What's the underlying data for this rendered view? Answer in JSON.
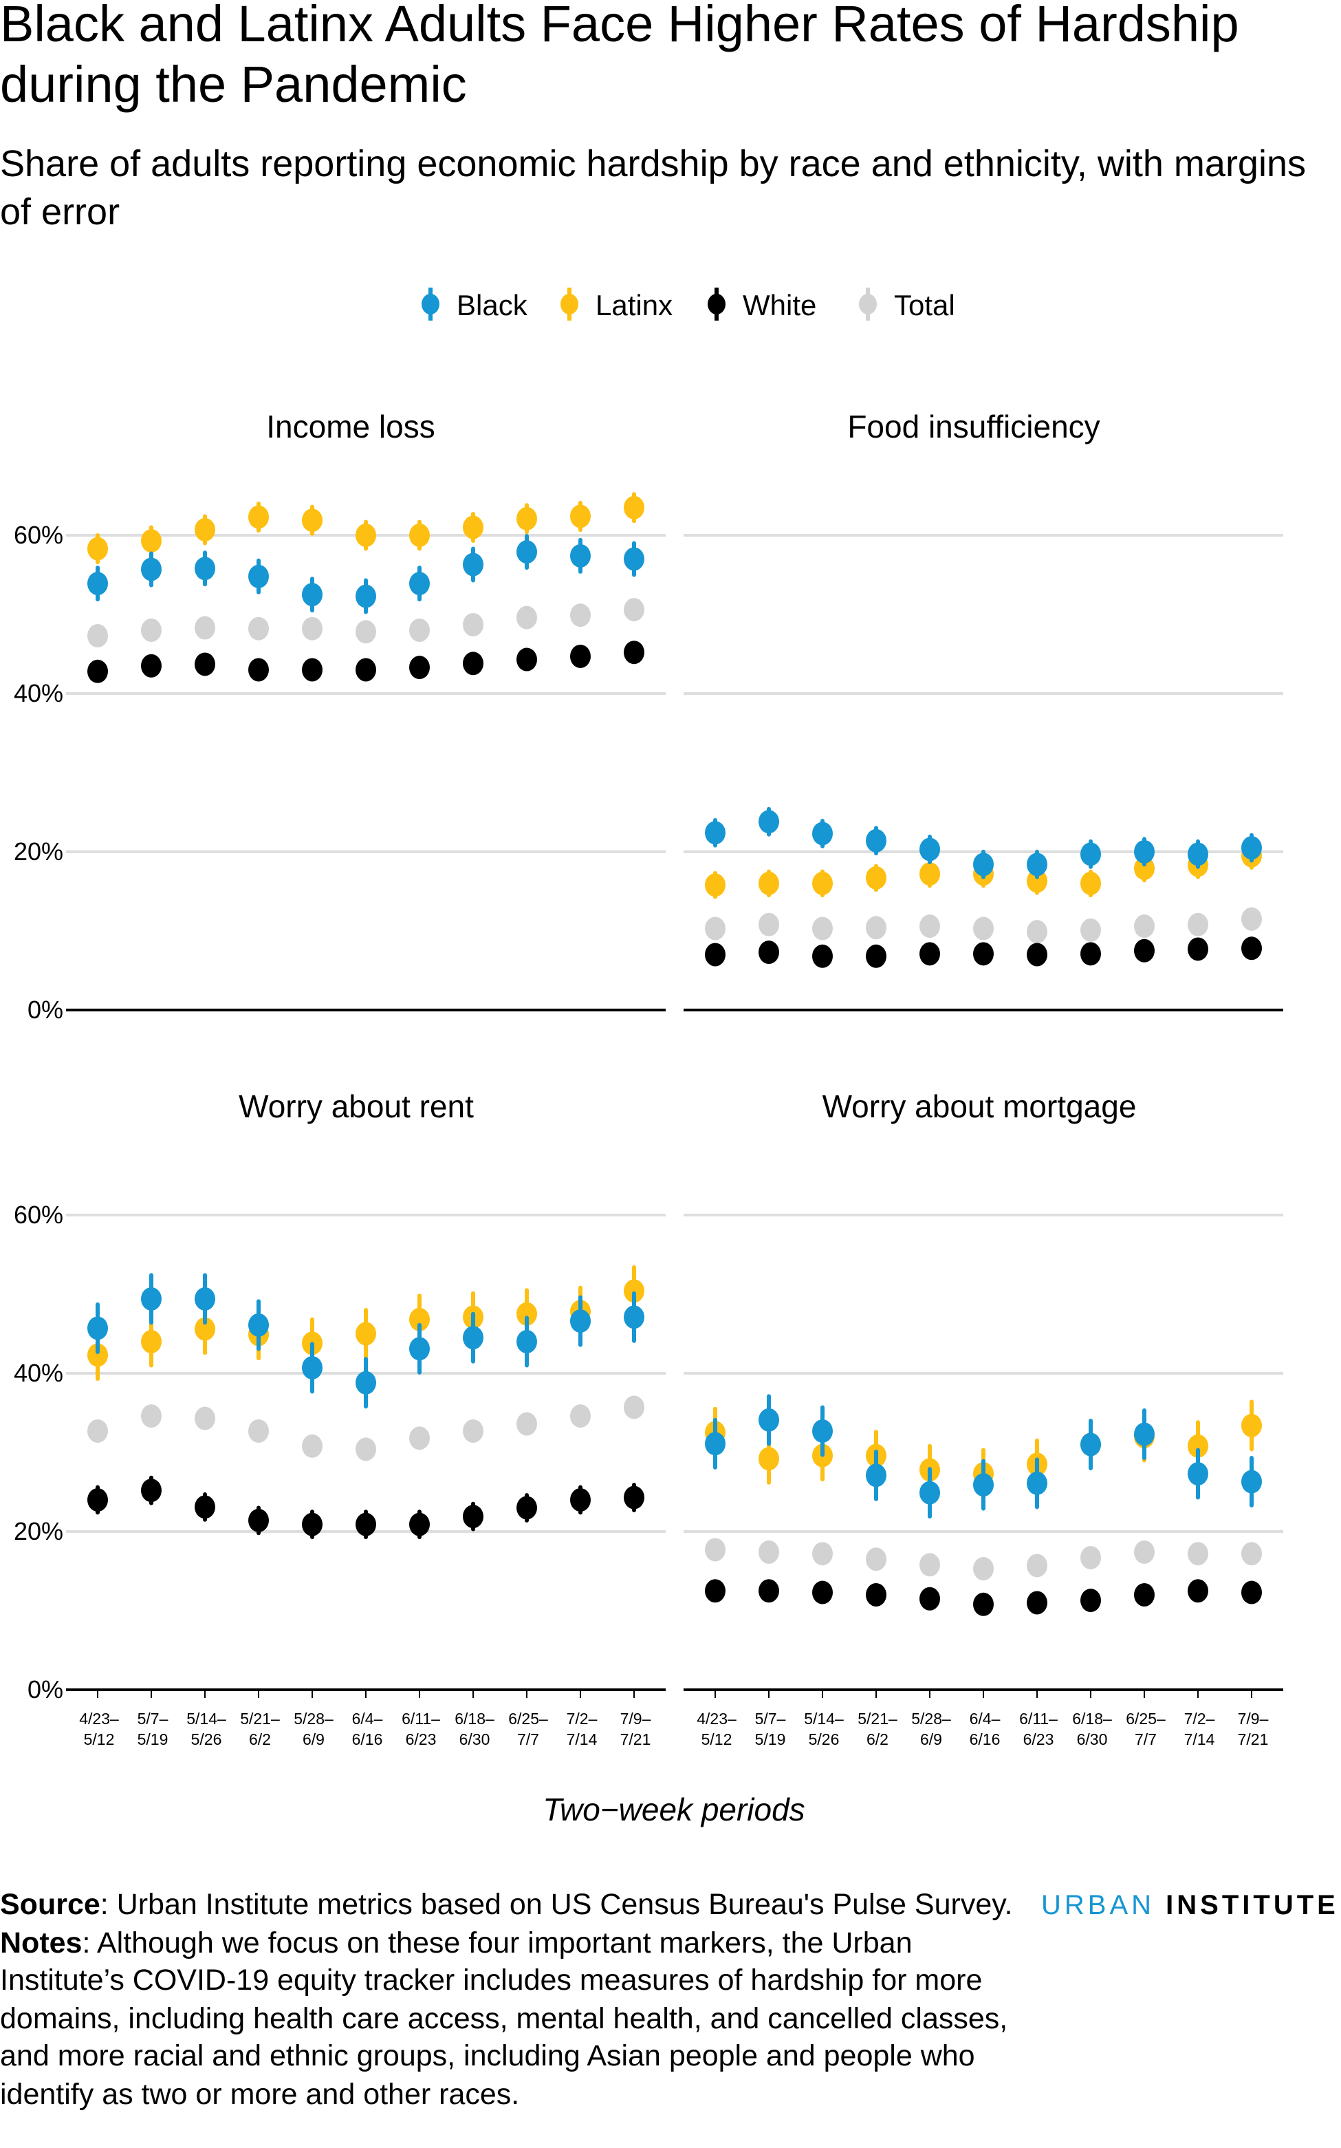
{
  "title": "Black and Latinx Adults Face Higher Rates of Hardship during the Pandemic",
  "subtitle": "Share of adults reporting economic hardship by race and ethnicity, with margins of error",
  "source_label": "Source",
  "source_text": ": Urban Institute metrics based on US Census Bureau's Pulse Survey.",
  "notes_label": "Notes",
  "notes_text": ": Although we focus on these four important markers, the Urban Institute’s COVID-19 equity tracker includes measures of hardship for more domains, including health care access, mental health, and cancelled classes, and more racial and ethnic groups, including Asian people and people who identify as two or more and other races.",
  "logo": {
    "part1": "URBAN",
    "part2": "INSTITUTE"
  },
  "chart_data": {
    "type": "scatter",
    "xlabel": "Two−week periods",
    "ylim": [
      0,
      60
    ],
    "yticks": [
      "0%",
      "20%",
      "40%",
      "60%"
    ],
    "yticks_values": [
      0,
      20,
      40,
      60
    ],
    "grid": true,
    "legend_placement": "top-center",
    "categories": [
      [
        "4/23–",
        "5/12"
      ],
      [
        "5/7–",
        "5/19"
      ],
      [
        "5/14–",
        "5/26"
      ],
      [
        "5/21–",
        "6/2"
      ],
      [
        "5/28–",
        "6/9"
      ],
      [
        "6/4–",
        "6/16"
      ],
      [
        "6/11–",
        "6/23"
      ],
      [
        "6/18–",
        "6/30"
      ],
      [
        "6/25–",
        "7/7"
      ],
      [
        "7/2–",
        "7/14"
      ],
      [
        "7/9–",
        "7/21"
      ]
    ],
    "legend": [
      {
        "name": "Black",
        "color": "#1696d2"
      },
      {
        "name": "Latinx",
        "color": "#fdbf11"
      },
      {
        "name": "White",
        "color": "#000000"
      },
      {
        "name": "Total",
        "color": "#d2d2d2"
      }
    ],
    "panels": [
      {
        "title": "Income loss",
        "series": [
          {
            "name": "Total",
            "values": [
              47.3,
              48.0,
              48.3,
              48.2,
              48.2,
              47.8,
              48.0,
              48.7,
              49.6,
              49.9,
              50.6
            ],
            "moe": 0.5
          },
          {
            "name": "White",
            "values": [
              42.8,
              43.5,
              43.7,
              43.0,
              43.0,
              43.0,
              43.3,
              43.8,
              44.3,
              44.7,
              45.2
            ],
            "moe": 0.5
          },
          {
            "name": "Latinx",
            "values": [
              58.3,
              59.3,
              60.7,
              62.3,
              61.9,
              60.0,
              60.0,
              61.0,
              62.1,
              62.4,
              63.5
            ],
            "moe": 1.7
          },
          {
            "name": "Black",
            "values": [
              53.9,
              55.7,
              55.8,
              54.8,
              52.5,
              52.3,
              53.9,
              56.3,
              57.9,
              57.4,
              57.0
            ],
            "moe": 2.0
          }
        ]
      },
      {
        "title": "Food insufficiency",
        "series": [
          {
            "name": "Total",
            "values": [
              10.3,
              10.8,
              10.3,
              10.4,
              10.6,
              10.3,
              9.9,
              10.1,
              10.6,
              10.8,
              11.5
            ],
            "moe": 0.4
          },
          {
            "name": "White",
            "values": [
              7.0,
              7.3,
              6.8,
              6.8,
              7.1,
              7.1,
              7.0,
              7.1,
              7.5,
              7.7,
              7.8
            ],
            "moe": 0.4
          },
          {
            "name": "Latinx",
            "values": [
              15.8,
              16.0,
              16.0,
              16.7,
              17.2,
              17.2,
              16.3,
              16.0,
              17.9,
              18.3,
              19.5
            ],
            "moe": 1.5
          },
          {
            "name": "Black",
            "values": [
              22.4,
              23.8,
              22.3,
              21.4,
              20.3,
              18.4,
              18.4,
              19.7,
              20.0,
              19.7,
              20.5
            ],
            "moe": 1.6
          }
        ]
      },
      {
        "title": "Worry about rent",
        "series": [
          {
            "name": "Total",
            "values": [
              32.7,
              34.6,
              34.3,
              32.7,
              30.8,
              30.4,
              31.8,
              32.7,
              33.6,
              34.6,
              35.7
            ],
            "moe": 1.2
          },
          {
            "name": "White",
            "values": [
              24.0,
              25.2,
              23.1,
              21.4,
              20.9,
              20.9,
              20.9,
              21.9,
              23.0,
              24.0,
              24.3
            ],
            "moe": 1.6
          },
          {
            "name": "Latinx",
            "values": [
              42.3,
              44.0,
              45.6,
              44.9,
              43.8,
              45.0,
              46.8,
              47.1,
              47.5,
              47.8,
              50.4
            ],
            "moe": 3.0
          },
          {
            "name": "Black",
            "values": [
              45.7,
              49.4,
              49.4,
              46.1,
              40.7,
              38.8,
              43.1,
              44.5,
              44.0,
              46.6,
              47.1
            ],
            "moe": 3.0
          }
        ]
      },
      {
        "title": "Worry about mortgage",
        "series": [
          {
            "name": "Total",
            "values": [
              17.7,
              17.4,
              17.2,
              16.5,
              15.8,
              15.3,
              15.7,
              16.7,
              17.4,
              17.2,
              17.2
            ],
            "moe": 0.5
          },
          {
            "name": "White",
            "values": [
              12.5,
              12.5,
              12.3,
              12.0,
              11.5,
              10.8,
              11.0,
              11.3,
              12.0,
              12.5,
              12.3
            ],
            "moe": 0.5
          },
          {
            "name": "Latinx",
            "values": [
              32.5,
              29.2,
              29.6,
              29.6,
              27.8,
              27.3,
              28.5,
              31.0,
              32.0,
              30.8,
              33.4
            ],
            "moe": 3.0
          },
          {
            "name": "Black",
            "values": [
              31.1,
              34.1,
              32.7,
              27.1,
              24.9,
              25.9,
              26.1,
              31.0,
              32.3,
              27.3,
              26.3
            ],
            "moe": 3.0
          }
        ]
      }
    ]
  }
}
